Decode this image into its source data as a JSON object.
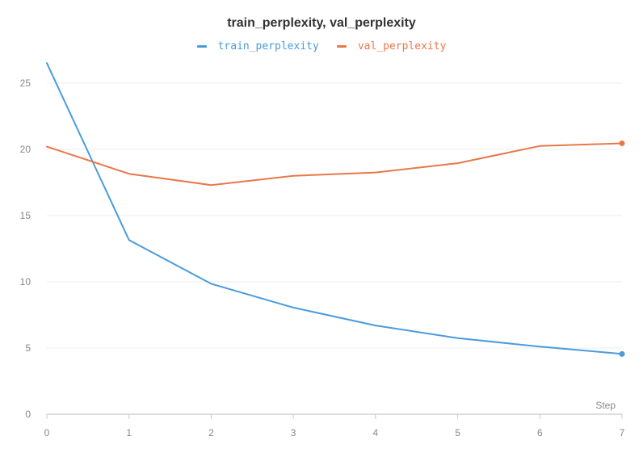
{
  "chart_data": {
    "type": "line",
    "title": "train_perplexity, val_perplexity",
    "xlabel": "Step",
    "ylabel": "",
    "x": [
      0,
      1,
      2,
      3,
      4,
      5,
      6,
      7
    ],
    "xlim": [
      0,
      7
    ],
    "ylim": [
      0,
      27
    ],
    "xticks": [
      "0",
      "1",
      "2",
      "3",
      "4",
      "5",
      "6",
      "7"
    ],
    "yticks": [
      0,
      5,
      10,
      15,
      20,
      25
    ],
    "grid": true,
    "legend_position": "top-center",
    "series": [
      {
        "name": "train_perplexity",
        "color": "#4a9bdc",
        "values": [
          26.5,
          13.15,
          9.85,
          8.05,
          6.7,
          5.75,
          5.1,
          4.55
        ]
      },
      {
        "name": "val_perplexity",
        "color": "#e8784a",
        "values": [
          20.2,
          18.15,
          17.3,
          18.0,
          18.25,
          18.95,
          20.25,
          20.45
        ]
      }
    ]
  }
}
